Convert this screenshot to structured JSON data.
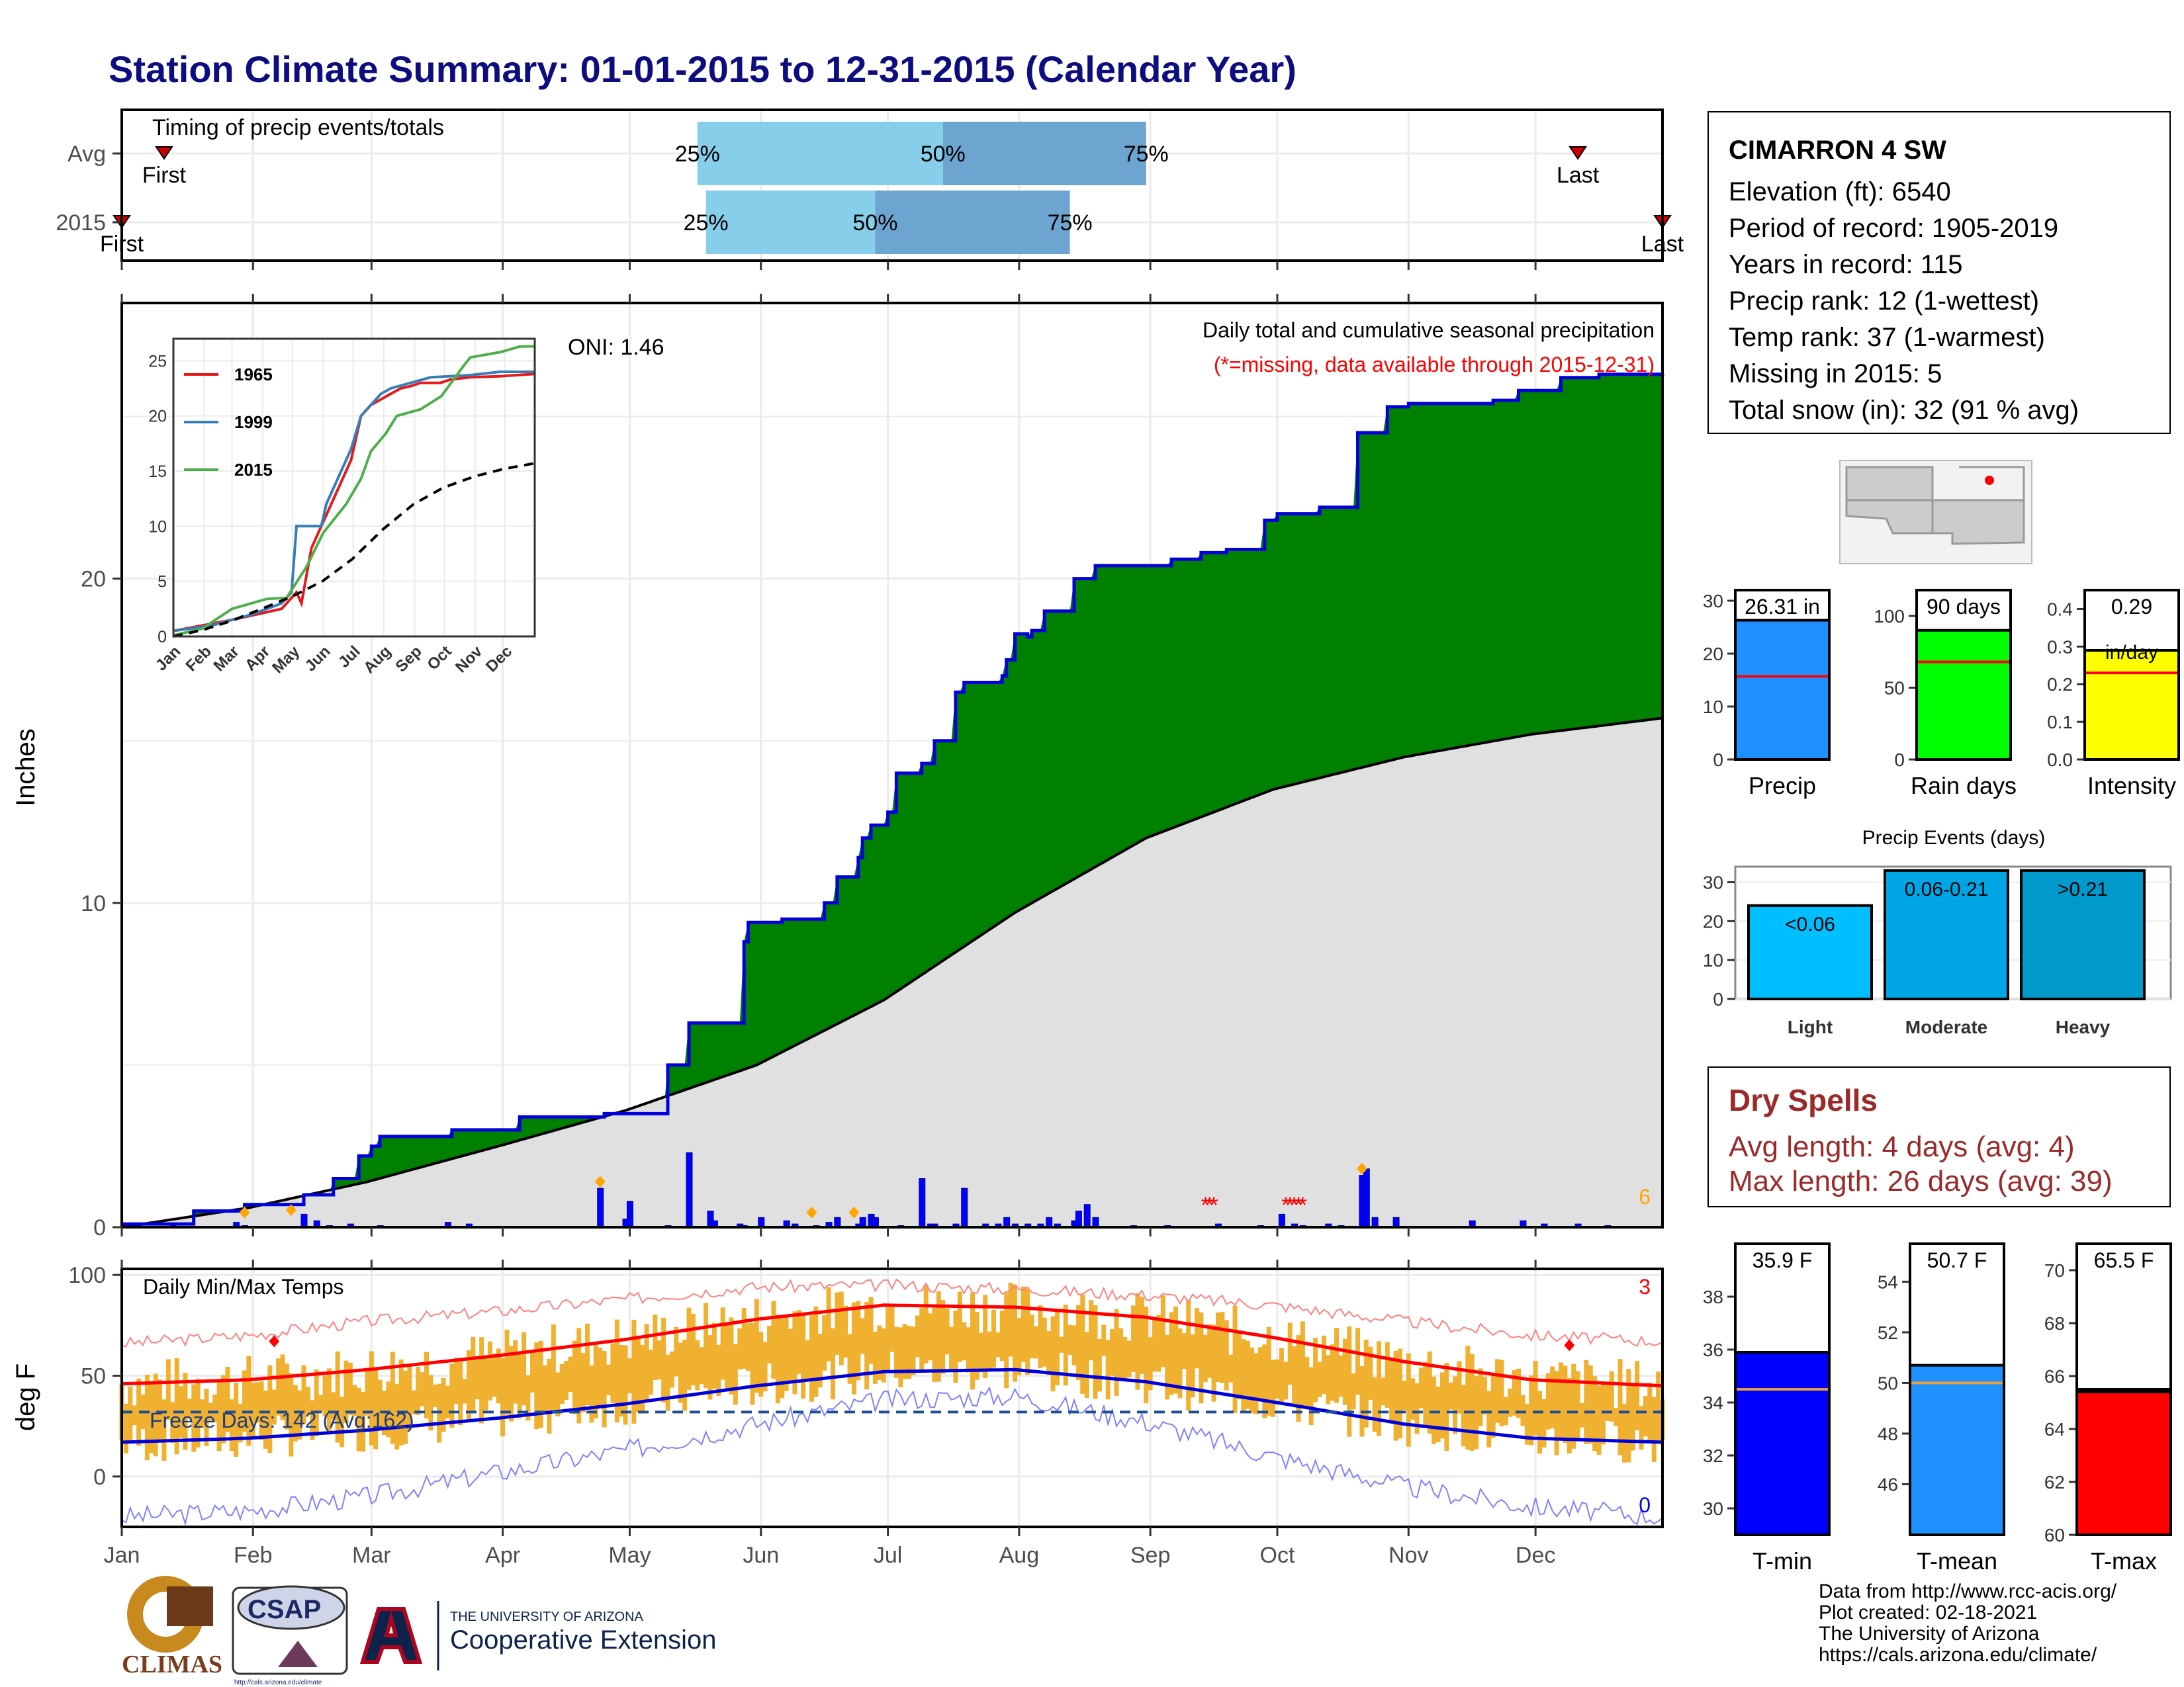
{
  "title": "Station Climate Summary: 01-01-2015 to 12-31-2015 (Calendar Year)",
  "station": {
    "name": "CIMARRON 4 SW",
    "lines": [
      "Elevation (ft): 6540",
      "Period of record: 1905-2019",
      "Years in record: 115",
      "Precip rank: 12 (1-wettest)",
      "Temp rank: 37 (1-warmest)",
      "Missing in 2015: 5",
      "Total snow (in): 32 (91 % avg)"
    ]
  },
  "dry_spells": {
    "title": "Dry Spells",
    "avg_length": "Avg length: 4 days (avg: 4)",
    "max_length": "Max length: 26 days (avg: 39)"
  },
  "credits": [
    "Data from http://www.rcc-acis.org/",
    "Plot created: 02-18-2021",
    "The University of Arizona",
    "https://cals.arizona.edu/climate/"
  ],
  "logos": {
    "climas": "CLIMAS",
    "csap": "CSAP",
    "csap_url": "http://cals.arizona.edu/climate",
    "ua_line1": "THE UNIVERSITY OF ARIZONA",
    "ua_line2": "Cooperative Extension"
  },
  "colors": {
    "title": "#0d0d80",
    "green": "#008000",
    "blue": "#0000ff",
    "red": "#ff0000",
    "orange": "#f0b030",
    "lightblue": "#87ceeb",
    "midblue": "#6ba5d0"
  },
  "months": [
    "Jan",
    "Feb",
    "Mar",
    "Apr",
    "May",
    "Jun",
    "Jul",
    "Aug",
    "Sep",
    "Oct",
    "Nov",
    "Dec"
  ],
  "chart_data": [
    {
      "type": "timeline",
      "title": "Timing of precip events/totals",
      "rows": [
        {
          "label": "Avg",
          "first_day": 11,
          "last_day": 345,
          "pct25_day": 137,
          "pct50_day": 195,
          "pct75_day": 243
        },
        {
          "label": "2015",
          "first_day": 1,
          "last_day": 365,
          "pct25_day": 139,
          "pct50_day": 179,
          "pct75_day": 225
        }
      ],
      "labels": {
        "first": "First",
        "last": "Last",
        "p25": "25%",
        "p50": "50%",
        "p75": "75%"
      }
    },
    {
      "type": "area",
      "title": "Daily total and cumulative seasonal precipitation",
      "subtitle": "(*=missing, data available through 2015-12-31)",
      "ylabel": "Inches",
      "ylim": [
        0,
        28.5
      ],
      "yticks": [
        0,
        10,
        20
      ],
      "oni": "ONI: 1.46",
      "right_count": "6",
      "cumulative_2015": {
        "days": [
          1,
          18,
          30,
          37,
          44,
          51,
          57,
          60,
          62,
          70,
          79,
          95,
          103,
          114,
          115,
          130,
          135,
          137,
          142,
          148,
          149,
          151,
          152,
          157,
          167,
          170,
          175,
          176,
          178,
          182,
          184,
          190,
          193,
          198,
          200,
          206,
          209,
          210,
          212,
          212,
          215,
          216,
          219,
          226,
          231,
          249,
          256,
          262,
          271,
          274,
          284,
          293,
          300,
          305,
          325,
          331,
          341,
          350,
          365
        ],
        "values": [
          0.1,
          0.5,
          0.7,
          0.7,
          1.0,
          1.5,
          2.2,
          2.5,
          2.8,
          2.8,
          3.0,
          3.4,
          3.4,
          3.4,
          3.5,
          5.0,
          6.3,
          6.3,
          6.3,
          8.8,
          9.4,
          9.4,
          9.4,
          9.5,
          10.0,
          10.8,
          11.4,
          12.0,
          12.4,
          12.8,
          14.0,
          14.3,
          15.0,
          16.5,
          16.8,
          16.8,
          17.0,
          17.5,
          18.3,
          18.3,
          18.2,
          18.4,
          19.0,
          20.0,
          20.4,
          20.6,
          20.8,
          20.9,
          21.8,
          22.0,
          22.2,
          24.5,
          25.3,
          25.4,
          25.5,
          25.8,
          26.2,
          26.3,
          26.31
        ]
      },
      "cumulative_avg": {
        "days": [
          1,
          31,
          59,
          90,
          120,
          151,
          181,
          212,
          243,
          273,
          304,
          334,
          365
        ],
        "values": [
          0,
          0.6,
          1.4,
          2.5,
          3.6,
          5.0,
          7.0,
          9.7,
          12.0,
          13.5,
          14.5,
          15.2,
          15.7
        ]
      },
      "daily_bars": {
        "days": [
          5,
          13,
          19,
          28,
          30,
          44,
          47,
          50,
          55,
          62,
          65,
          78,
          83,
          114,
          120,
          121,
          130,
          135,
          140,
          141,
          147,
          148,
          152,
          158,
          160,
          165,
          168,
          170,
          175,
          176,
          178,
          179,
          185,
          190,
          192,
          193,
          198,
          200,
          205,
          208,
          210,
          212,
          215,
          218,
          220,
          222,
          226,
          227,
          229,
          231,
          240,
          248,
          260,
          270,
          275,
          278,
          280,
          286,
          289,
          294,
          295,
          297,
          302,
          320,
          332,
          337,
          345,
          352
        ],
        "values": [
          0.05,
          0.1,
          0.03,
          0.15,
          0.05,
          0.4,
          0.2,
          0.05,
          0.1,
          0.05,
          0.03,
          0.15,
          0.1,
          1.2,
          0.25,
          0.8,
          0.05,
          2.3,
          0.5,
          0.2,
          0.1,
          0.05,
          0.3,
          0.2,
          0.1,
          0.05,
          0.15,
          0.3,
          0.1,
          0.3,
          0.4,
          0.3,
          0.05,
          1.5,
          0.1,
          0.1,
          0.1,
          1.2,
          0.1,
          0.1,
          0.3,
          0.1,
          0.1,
          0.1,
          0.3,
          0.1,
          0.2,
          0.5,
          0.7,
          0.3,
          0.05,
          0.05,
          0.1,
          0.05,
          0.4,
          0.1,
          0.05,
          0.1,
          0.05,
          1.6,
          1.8,
          0.3,
          0.3,
          0.2,
          0.2,
          0.1,
          0.1,
          0.05
        ]
      },
      "snow_days": [
        30,
        41,
        114,
        164,
        174,
        294
      ],
      "missing_days": [
        257,
        258,
        259,
        276,
        277,
        278,
        279,
        280
      ],
      "inset": {
        "type": "line",
        "xticks": [
          "Jan",
          "Feb",
          "Mar",
          "Apr",
          "May",
          "Jun",
          "Jul",
          "Aug",
          "Sep",
          "Oct",
          "Nov",
          "Dec"
        ],
        "yticks": [
          0,
          5,
          10,
          15,
          20,
          25
        ],
        "series": [
          {
            "name": "1965",
            "color": "#e41a1c",
            "days": [
              1,
              60,
              110,
              125,
              130,
              140,
              150,
              160,
              170,
              180,
              190,
              200,
              210,
              220,
              230,
              240,
              250,
              260,
              270,
              280,
              300,
              330,
              365
            ],
            "values": [
              0.5,
              1.5,
              2.5,
              4.0,
              3.0,
              8.0,
              10.0,
              12.0,
              14.0,
              16.0,
              20.0,
              21.0,
              21.5,
              22.0,
              22.5,
              22.7,
              23.0,
              23.0,
              23.0,
              23.3,
              23.5,
              23.6,
              23.8
            ]
          },
          {
            "name": "1999",
            "color": "#377eb8",
            "days": [
              1,
              40,
              80,
              110,
              120,
              125,
              150,
              155,
              165,
              180,
              190,
              200,
              210,
              220,
              240,
              260,
              300,
              330,
              365
            ],
            "values": [
              0.5,
              1.0,
              2.0,
              3.0,
              4.0,
              10.0,
              10.0,
              12.0,
              14.0,
              17.0,
              20.0,
              21.0,
              22.0,
              22.5,
              23.0,
              23.5,
              23.7,
              24.0,
              24.0
            ]
          },
          {
            "name": "2015",
            "color": "#4daf4a",
            "days": [
              1,
              30,
              60,
              95,
              115,
              135,
              152,
              175,
              190,
              200,
              215,
              226,
              250,
              271,
              293,
              300,
              331,
              350,
              365
            ],
            "values": [
              0.1,
              0.7,
              2.5,
              3.4,
              3.5,
              6.3,
              9.4,
              12.0,
              14.3,
              16.8,
              18.4,
              20.0,
              20.6,
              21.8,
              24.5,
              25.3,
              25.8,
              26.3,
              26.31
            ]
          },
          {
            "name": "avg",
            "color": "#000000",
            "dashed": true,
            "days": [
              1,
              31,
              59,
              90,
              120,
              151,
              181,
              212,
              243,
              273,
              304,
              334,
              365
            ],
            "values": [
              0,
              0.6,
              1.4,
              2.5,
              3.6,
              5.0,
              7.0,
              9.7,
              12.0,
              13.5,
              14.5,
              15.2,
              15.7
            ]
          }
        ]
      }
    },
    {
      "type": "line",
      "title": "Daily Min/Max Temps",
      "ylabel": "deg F",
      "ylim": [
        -25,
        103
      ],
      "yticks": [
        0,
        50,
        100
      ],
      "freeze": "Freeze Days: 142 (Avg:162)",
      "freeze_line": 32,
      "right_top": "3",
      "right_bottom": "0",
      "avg_max": {
        "days": [
          1,
          31,
          59,
          90,
          120,
          151,
          181,
          212,
          243,
          273,
          304,
          334,
          365
        ],
        "values": [
          46,
          48,
          53,
          60,
          68,
          78,
          85,
          84,
          79,
          69,
          57,
          48,
          45
        ]
      },
      "avg_min": {
        "days": [
          1,
          31,
          59,
          90,
          120,
          151,
          181,
          212,
          243,
          273,
          304,
          334,
          365
        ],
        "values": [
          17,
          19,
          23,
          29,
          36,
          45,
          52,
          53,
          47,
          37,
          26,
          19,
          17
        ]
      },
      "rec_max": {
        "days": [
          1,
          31,
          59,
          90,
          120,
          151,
          181,
          212,
          243,
          273,
          304,
          334,
          365
        ],
        "values": [
          66,
          70,
          77,
          82,
          88,
          94,
          95,
          93,
          90,
          85,
          77,
          70,
          67
        ]
      },
      "rec_min": {
        "days": [
          1,
          31,
          59,
          90,
          120,
          151,
          181,
          212,
          243,
          273,
          304,
          334,
          365
        ],
        "values": [
          -20,
          -17,
          -10,
          2,
          13,
          26,
          38,
          40,
          27,
          10,
          -5,
          -15,
          -20
        ]
      },
      "record_high_days": [
        37,
        343
      ]
    },
    {
      "type": "bar",
      "categories": [
        "Precip"
      ],
      "values": [
        26.31
      ],
      "avg": 15.7,
      "label": "26.31 in",
      "ylim": [
        0,
        32
      ],
      "yticks": [
        0,
        10,
        20,
        30
      ],
      "color": "#1e90ff"
    },
    {
      "type": "bar",
      "categories": [
        "Rain days"
      ],
      "values": [
        90
      ],
      "avg": 68,
      "label": "90 days",
      "ylim": [
        0,
        118
      ],
      "yticks": [
        0,
        50,
        100
      ],
      "color": "#00ff00"
    },
    {
      "type": "bar",
      "categories": [
        "Intensity"
      ],
      "values": [
        0.29
      ],
      "avg": 0.23,
      "label": "0.29",
      "label2": "in/day",
      "ylim": [
        0,
        0.45
      ],
      "yticks": [
        0.0,
        0.1,
        0.2,
        0.3,
        0.4
      ],
      "color": "#ffff00"
    },
    {
      "type": "bar",
      "title": "Precip Events (days)",
      "categories": [
        "Light",
        "Moderate",
        "Heavy"
      ],
      "labels": [
        "<0.06",
        "0.06-0.21",
        ">0.21"
      ],
      "values": [
        24,
        33,
        33
      ],
      "ylim": [
        0,
        34
      ],
      "yticks": [
        0,
        10,
        20,
        30
      ],
      "colors": [
        "#00bfff",
        "#00a5e5",
        "#0099cc"
      ]
    },
    {
      "type": "bar",
      "categories": [
        "T-min"
      ],
      "values": [
        35.9
      ],
      "avg": 34.5,
      "label": "35.9 F",
      "ylim": [
        29,
        40
      ],
      "yticks": [
        30,
        32,
        34,
        36,
        38
      ],
      "color": "#0000ff"
    },
    {
      "type": "bar",
      "categories": [
        "T-mean"
      ],
      "values": [
        50.7
      ],
      "avg": 50.0,
      "label": "50.7 F",
      "ylim": [
        44,
        55.5
      ],
      "yticks": [
        46,
        48,
        50,
        52,
        54
      ],
      "color": "#1e90ff"
    },
    {
      "type": "bar",
      "categories": [
        "T-max"
      ],
      "values": [
        65.5
      ],
      "avg": 65.4,
      "label": "65.5 F",
      "ylim": [
        60,
        71
      ],
      "yticks": [
        60,
        62,
        64,
        66,
        68,
        70
      ],
      "color": "#ff0000"
    }
  ]
}
